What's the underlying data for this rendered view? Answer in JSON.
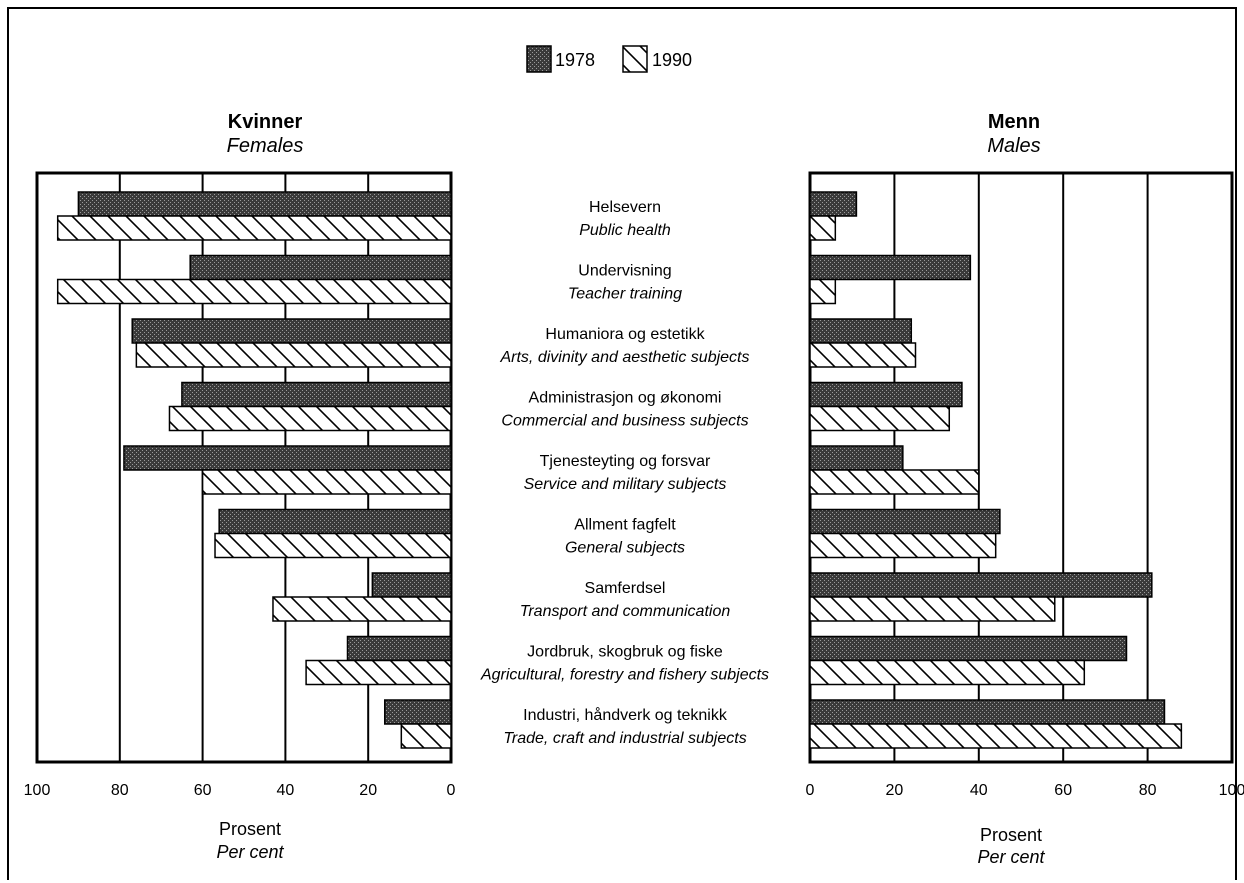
{
  "legend": [
    {
      "label": "1978",
      "pattern": "dots"
    },
    {
      "label": "1990",
      "pattern": "hatch"
    }
  ],
  "left_panel": {
    "title": "Kvinner",
    "subtitle": "Females",
    "xlabel": "Prosent",
    "xlabel_en": "Per cent"
  },
  "right_panel": {
    "title": "Menn",
    "subtitle": "Males",
    "xlabel": "Prosent",
    "xlabel_en": "Per cent"
  },
  "chart_data": {
    "type": "bar",
    "orientation": "horizontal",
    "layout": "back-to-back",
    "categories": [
      {
        "no": "Helsevern",
        "en": "Public health"
      },
      {
        "no": "Undervisning",
        "en": "Teacher training"
      },
      {
        "no": "Humaniora og estetikk",
        "en": "Arts, divinity and aesthetic subjects"
      },
      {
        "no": "Administrasjon og økonomi",
        "en": "Commercial and business subjects"
      },
      {
        "no": "Tjenesteyting og forsvar",
        "en": "Service and military subjects"
      },
      {
        "no": "Allment fagfelt",
        "en": "General subjects"
      },
      {
        "no": "Samferdsel",
        "en": "Transport and communication"
      },
      {
        "no": "Jordbruk, skogbruk og fiske",
        "en": "Agricultural, forestry and fishery subjects"
      },
      {
        "no": "Industri, håndverk og teknikk",
        "en": "Trade, craft and industrial subjects"
      }
    ],
    "females": [
      {
        "name": "1978",
        "values": [
          90,
          63,
          77,
          65,
          79,
          56,
          19,
          25,
          16
        ]
      },
      {
        "name": "1990",
        "values": [
          95,
          95,
          76,
          68,
          60,
          57,
          43,
          35,
          12
        ]
      }
    ],
    "males": [
      {
        "name": "1978",
        "values": [
          11,
          38,
          24,
          36,
          22,
          45,
          81,
          75,
          84
        ]
      },
      {
        "name": "1990",
        "values": [
          6,
          6,
          25,
          33,
          40,
          44,
          58,
          65,
          88
        ]
      }
    ],
    "xlim": [
      0,
      100
    ],
    "ticks": [
      0,
      20,
      40,
      60,
      80,
      100
    ],
    "grid": true
  }
}
